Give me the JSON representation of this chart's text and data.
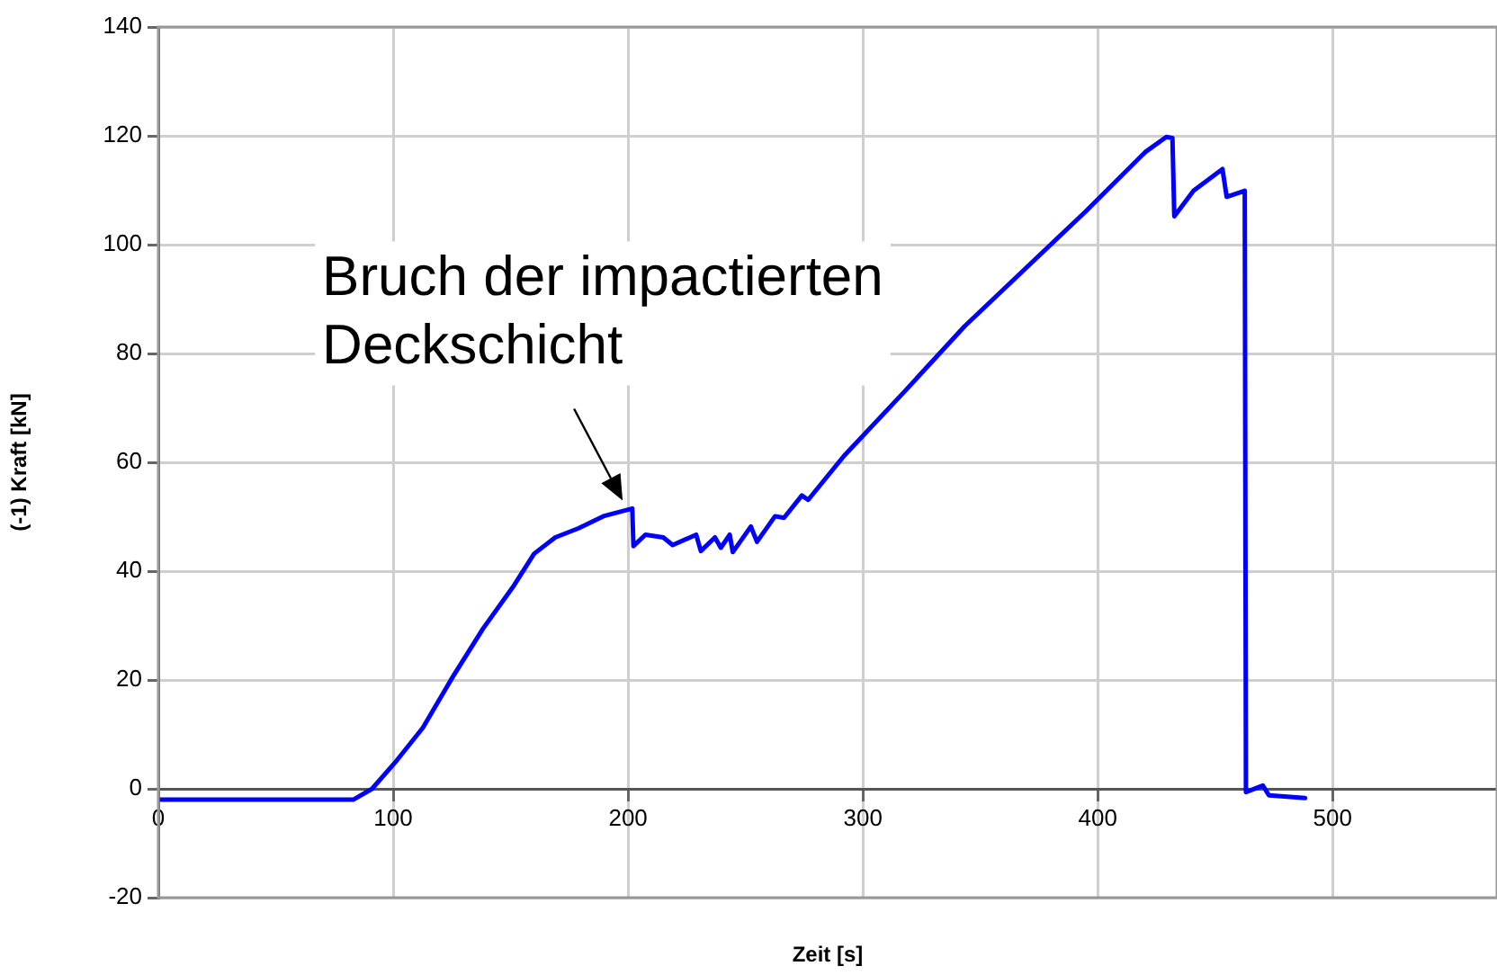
{
  "chart_data": {
    "type": "line",
    "xlabel": "Zeit [s]",
    "ylabel": "(-1) Kraft [kN]",
    "x": [
      0,
      83,
      91,
      101.5,
      112.6,
      125.4,
      138.2,
      151,
      160,
      169,
      179,
      189.5,
      201.8,
      202.3,
      207.4,
      215,
      219,
      229,
      231,
      237,
      239.5,
      243.3,
      244.6,
      252.3,
      254.9,
      262.6,
      266.4,
      274,
      276.7,
      292,
      317.7,
      343.3,
      394.6,
      420.2,
      429.2,
      431.8,
      432.6,
      440.8,
      453.1,
      454.9,
      462.6,
      463.1,
      470.3,
      472.9,
      488.3
    ],
    "series": [
      {
        "color": "#0000ff",
        "values": [
          -2,
          -2,
          0,
          5.2,
          11.2,
          20.6,
          29.4,
          37.1,
          43.2,
          46.2,
          47.9,
          50.1,
          51.5,
          44.6,
          46.7,
          46.2,
          44.8,
          46.7,
          43.7,
          46.2,
          44.3,
          46.7,
          43.5,
          48.2,
          45.4,
          50.1,
          49.8,
          53.9,
          53.1,
          61.2,
          73,
          85,
          106,
          117,
          119.8,
          119.6,
          105.2,
          109.9,
          113.9,
          108.8,
          109.9,
          -0.6,
          0.6,
          -1.2,
          -1.7
        ]
      }
    ],
    "xlim": [
      0,
      570
    ],
    "ylim": [
      -20,
      140
    ],
    "xticks": [
      0,
      100,
      200,
      300,
      400,
      500
    ],
    "yticks": [
      -20,
      0,
      20,
      40,
      60,
      80,
      100,
      120,
      140
    ],
    "grid": true,
    "legend": false,
    "marker": "none",
    "line_style": "solid",
    "annotations": [
      {
        "text": "Bruch der impactierten\nDeckschicht",
        "x": 200,
        "y": 51
      }
    ]
  }
}
